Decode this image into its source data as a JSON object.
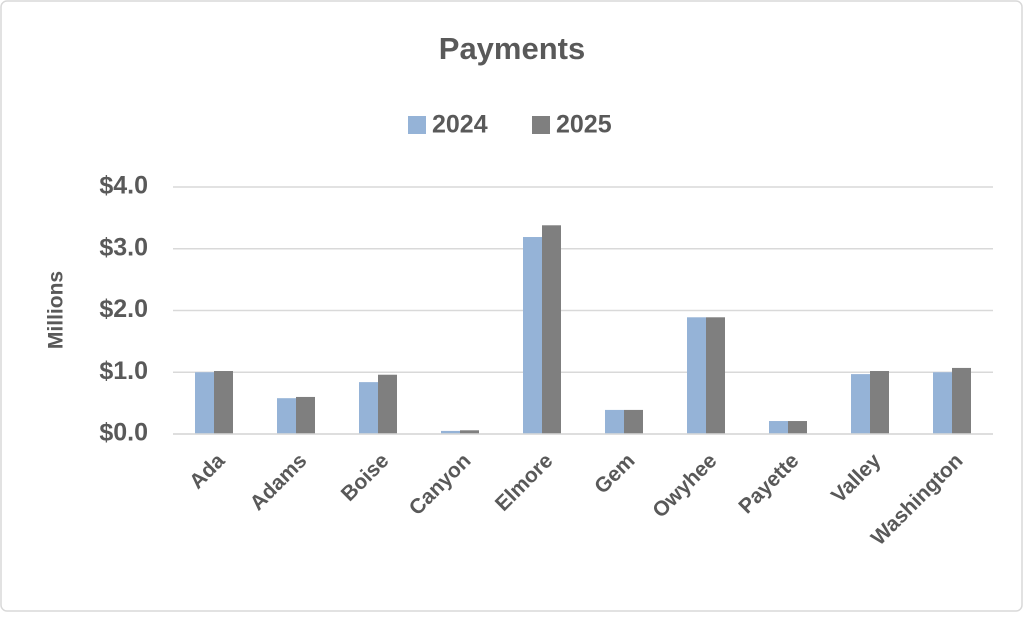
{
  "chart_data": {
    "type": "bar",
    "title": "Payments",
    "y_label": "Millions",
    "categories": [
      "Ada",
      "Adams",
      "Boise",
      "Canyon",
      "Elmore",
      "Gem",
      "Owyhee",
      "Payette",
      "Valley",
      "Washington"
    ],
    "series": [
      {
        "name": "2024",
        "color": "#95b3d7",
        "values": [
          1.0,
          0.58,
          0.84,
          0.05,
          3.19,
          0.39,
          1.89,
          0.21,
          0.97,
          1.0
        ]
      },
      {
        "name": "2025",
        "color": "#7f7f7f",
        "values": [
          1.02,
          0.6,
          0.96,
          0.06,
          3.38,
          0.39,
          1.89,
          0.21,
          1.02,
          1.07
        ]
      }
    ],
    "ylim": [
      0,
      4
    ],
    "yticks": [
      {
        "value": 0,
        "label": "$0.0"
      },
      {
        "value": 1,
        "label": "$1.0"
      },
      {
        "value": 2,
        "label": "$2.0"
      },
      {
        "value": 3,
        "label": "$3.0"
      },
      {
        "value": 4,
        "label": "$4.0"
      }
    ],
    "grid": true,
    "legend": "top"
  }
}
